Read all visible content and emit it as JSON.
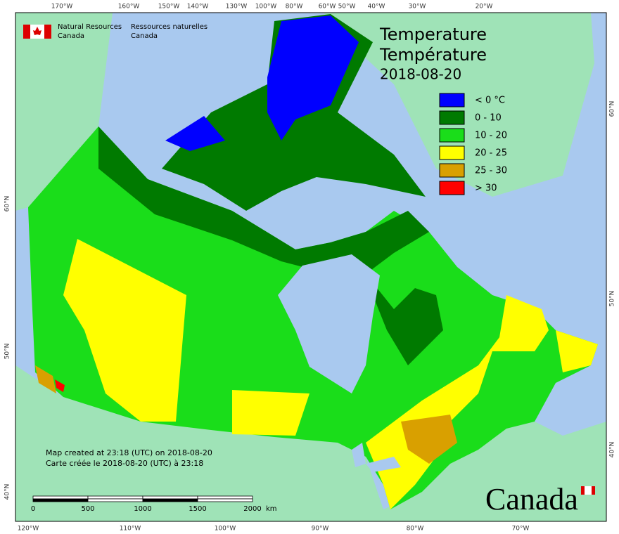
{
  "header": {
    "org_en_1": "Natural Resources",
    "org_en_2": "Canada",
    "org_fr_1": "Ressources naturelles",
    "org_fr_2": "Canada"
  },
  "title": {
    "en": "Temperature",
    "fr": "Température",
    "date": "2018-08-20"
  },
  "legend": [
    {
      "label": "< 0 °C",
      "color": "#0000ff"
    },
    {
      "label": "0 - 10",
      "color": "#007a00"
    },
    {
      "label": "10 - 20",
      "color": "#1add1a"
    },
    {
      "label": "20 - 25",
      "color": "#ffff00"
    },
    {
      "label": "25 - 30",
      "color": "#d9a000"
    },
    {
      "label": "> 30",
      "color": "#ff0000"
    }
  ],
  "graticule": {
    "top": [
      "170°W",
      "160°W",
      "150°W",
      "140°W",
      "130°W",
      "100°W",
      "80°W",
      "60°W",
      "50°W",
      "40°W",
      "30°W",
      "20°W"
    ],
    "bottom": [
      "120°W",
      "110°W",
      "100°W",
      "90°W",
      "80°W",
      "70°W"
    ],
    "left": [
      "60°N",
      "50°N",
      "40°N"
    ],
    "right": [
      "60°N",
      "50°N",
      "40°N"
    ]
  },
  "notes": [
    "Map created at 23:18 (UTC) on 2018-08-20",
    "Carte créée le 2018-08-20 (UTC) à 23:18"
  ],
  "scale": {
    "ticks": [
      "0",
      "500",
      "1000",
      "1500",
      "2000"
    ],
    "unit": "km"
  },
  "wordmark": "Canada"
}
